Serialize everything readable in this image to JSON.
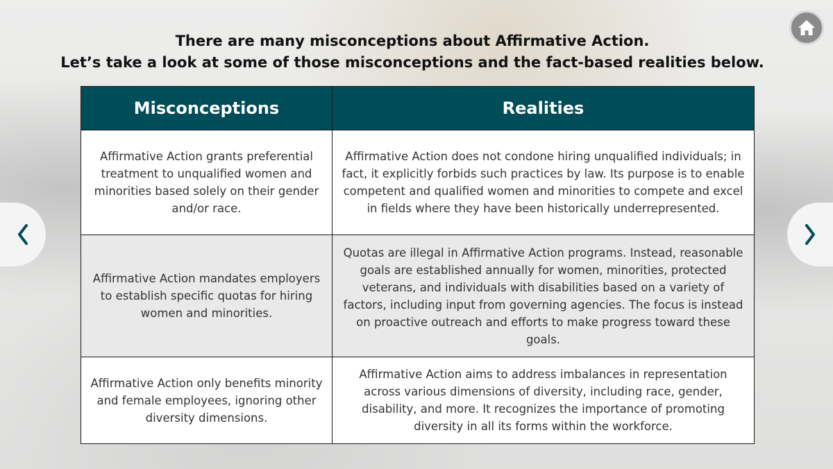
{
  "title": {
    "line1": "There are many misconceptions about Affirmative Action.",
    "line2": "Let’s take a look at some of those misconceptions and the fact-based realities below."
  },
  "table": {
    "headers": [
      "Misconceptions",
      "Realities"
    ],
    "rows": [
      {
        "misconception": "Affirmative Action grants preferential treatment to unqualified women and minorities based solely on their gender and/or race.",
        "reality": "Affirmative Action does not condone hiring unqualified individuals; in fact, it explicitly forbids such practices by law. Its purpose is to enable competent and qualified women and minorities to compete and excel in fields where they have been historically underrepresented."
      },
      {
        "misconception": "Affirmative Action mandates employers to establish specific quotas for hiring women and minorities.",
        "reality": "Quotas are illegal in Affirmative Action programs. Instead, reasonable goals are established annually for women, minorities, protected veterans, and individuals with disabilities based on a variety of factors, including input from governing agencies. The focus is instead on proactive outreach and efforts to make progress toward these goals."
      },
      {
        "misconception": "Affirmative Action only benefits minority and female employees, ignoring other diversity dimensions.",
        "reality": "Affirmative Action aims to address imbalances in representation across various dimensions of diversity, including race, gender, disability, and more. It recognizes the importance of promoting diversity in all its forms within the workforce."
      }
    ]
  },
  "icons": {
    "home": "home-icon",
    "prev": "chevron-left-icon",
    "next": "chevron-right-icon"
  },
  "colors": {
    "header_bg": "#004d5a",
    "header_text": "#ffffff",
    "nav_arrow": "#004d5a",
    "home_bg": "#8a8a8a",
    "alt_row_bg": "#e9e9e9"
  }
}
